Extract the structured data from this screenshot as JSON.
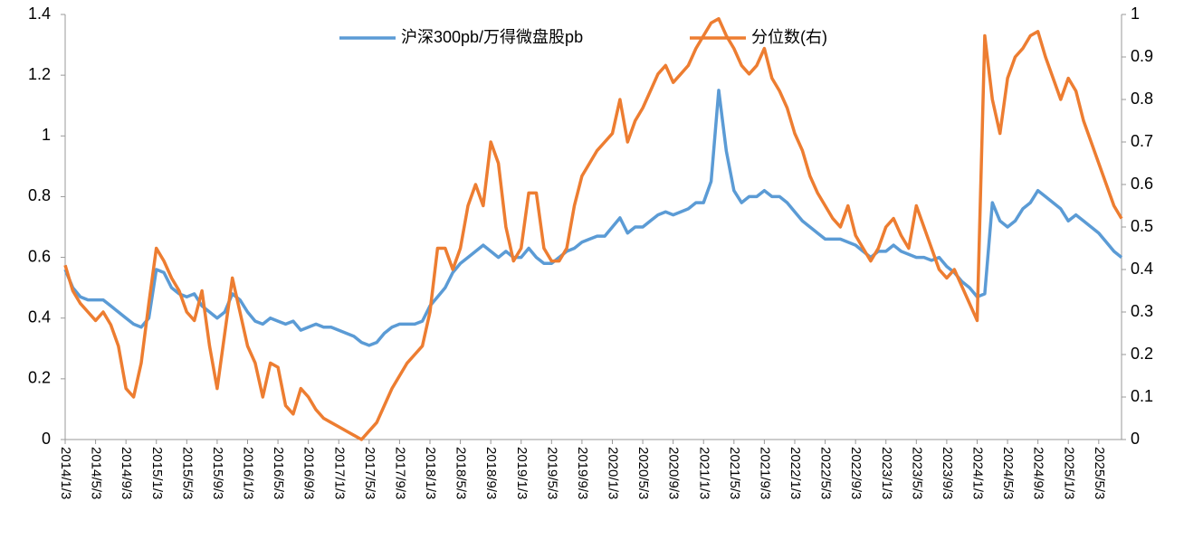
{
  "chart_data": {
    "type": "line",
    "legend": "top",
    "categories": [
      "2014/1/3",
      null,
      null,
      null,
      "2014/5/3",
      null,
      null,
      null,
      "2014/9/3",
      null,
      null,
      null,
      "2015/1/3",
      null,
      null,
      null,
      "2015/5/3",
      null,
      null,
      null,
      "2015/9/3",
      null,
      null,
      null,
      "2016/1/3",
      null,
      null,
      null,
      "2016/5/3",
      null,
      null,
      null,
      "2016/9/3",
      null,
      null,
      null,
      "2017/1/3",
      null,
      null,
      null,
      "2017/5/3",
      null,
      null,
      null,
      "2017/9/3",
      null,
      null,
      null,
      "2018/1/3",
      null,
      null,
      null,
      "2018/5/3",
      null,
      null,
      null,
      "2018/9/3",
      null,
      null,
      null,
      "2019/1/3",
      null,
      null,
      null,
      "2019/5/3",
      null,
      null,
      null,
      "2019/9/3",
      null,
      null,
      null,
      "2020/1/3",
      null,
      null,
      null,
      "2020/5/3",
      null,
      null,
      null,
      "2020/9/3",
      null,
      null,
      null,
      "2021/1/3",
      null,
      null,
      null,
      "2021/5/3",
      null,
      null,
      null,
      "2021/9/3",
      null,
      null,
      null,
      "2022/1/3",
      null,
      null,
      null,
      "2022/5/3",
      null,
      null,
      null,
      "2022/9/3",
      null,
      null,
      null,
      "2023/1/3",
      null,
      null,
      null,
      "2023/5/3",
      null,
      null,
      null,
      "2023/9/3",
      null,
      null,
      null,
      "2024/1/3",
      null,
      null,
      null,
      "2024/5/3",
      null,
      null,
      null,
      "2024/9/3",
      null,
      null,
      null,
      "2025/1/3",
      null,
      null,
      null,
      "2025/5/3",
      null,
      null,
      null
    ],
    "series": [
      {
        "name": "沪深300pb/万得微盘股pb",
        "color": "#5b9bd5",
        "values": [
          0.56,
          0.5,
          0.47,
          0.46,
          0.46,
          0.46,
          0.44,
          0.42,
          0.4,
          0.38,
          0.37,
          0.4,
          0.56,
          0.55,
          0.5,
          0.48,
          0.47,
          0.48,
          0.44,
          0.42,
          0.4,
          0.42,
          0.48,
          0.46,
          0.42,
          0.39,
          0.38,
          0.4,
          0.39,
          0.38,
          0.39,
          0.36,
          0.37,
          0.38,
          0.37,
          0.37,
          0.36,
          0.35,
          0.34,
          0.32,
          0.31,
          0.32,
          0.35,
          0.37,
          0.38,
          0.38,
          0.38,
          0.39,
          0.44,
          0.47,
          0.5,
          0.55,
          0.58,
          0.6,
          0.62,
          0.64,
          0.62,
          0.6,
          0.62,
          0.6,
          0.6,
          0.63,
          0.6,
          0.58,
          0.58,
          0.6,
          0.62,
          0.63,
          0.65,
          0.66,
          0.67,
          0.67,
          0.7,
          0.73,
          0.68,
          0.7,
          0.7,
          0.72,
          0.74,
          0.75,
          0.74,
          0.75,
          0.76,
          0.78,
          0.78,
          0.85,
          1.15,
          0.95,
          0.82,
          0.78,
          0.8,
          0.8,
          0.82,
          0.8,
          0.8,
          0.78,
          0.75,
          0.72,
          0.7,
          0.68,
          0.66,
          0.66,
          0.66,
          0.65,
          0.64,
          0.62,
          0.6,
          0.62,
          0.62,
          0.64,
          0.62,
          0.61,
          0.6,
          0.6,
          0.59,
          0.6,
          0.57,
          0.55,
          0.52,
          0.5,
          0.47,
          0.48,
          0.78,
          0.72,
          0.7,
          0.72,
          0.76,
          0.78,
          0.82,
          0.8,
          0.78,
          0.76,
          0.72,
          0.74,
          0.72,
          0.7,
          0.68,
          0.65,
          0.62,
          0.6
        ]
      },
      {
        "name": "分位数(右)",
        "color": "#ed7d31",
        "axis": "y2",
        "values": [
          0.41,
          0.35,
          0.32,
          0.3,
          0.28,
          0.3,
          0.27,
          0.22,
          0.12,
          0.1,
          0.18,
          0.32,
          0.45,
          0.42,
          0.38,
          0.35,
          0.3,
          0.28,
          0.35,
          0.22,
          0.12,
          0.25,
          0.38,
          0.3,
          0.22,
          0.18,
          0.1,
          0.18,
          0.17,
          0.08,
          0.06,
          0.12,
          0.1,
          0.07,
          0.05,
          0.04,
          0.03,
          0.02,
          0.01,
          0.0,
          0.02,
          0.04,
          0.08,
          0.12,
          0.15,
          0.18,
          0.2,
          0.22,
          0.3,
          0.45,
          0.45,
          0.4,
          0.45,
          0.55,
          0.6,
          0.55,
          0.7,
          0.65,
          0.5,
          0.42,
          0.45,
          0.58,
          0.58,
          0.45,
          0.42,
          0.42,
          0.45,
          0.55,
          0.62,
          0.65,
          0.68,
          0.7,
          0.72,
          0.8,
          0.7,
          0.75,
          0.78,
          0.82,
          0.86,
          0.88,
          0.84,
          0.86,
          0.88,
          0.92,
          0.95,
          0.98,
          0.99,
          0.95,
          0.92,
          0.88,
          0.86,
          0.88,
          0.92,
          0.85,
          0.82,
          0.78,
          0.72,
          0.68,
          0.62,
          0.58,
          0.55,
          0.52,
          0.5,
          0.55,
          0.48,
          0.45,
          0.42,
          0.45,
          0.5,
          0.52,
          0.48,
          0.45,
          0.55,
          0.5,
          0.45,
          0.4,
          0.38,
          0.4,
          0.36,
          0.32,
          0.28,
          0.95,
          0.8,
          0.72,
          0.85,
          0.9,
          0.92,
          0.95,
          0.96,
          0.9,
          0.85,
          0.8,
          0.85,
          0.82,
          0.75,
          0.7,
          0.65,
          0.6,
          0.55,
          0.52
        ]
      }
    ],
    "ylim": [
      0,
      1.4
    ],
    "yticks": [
      0,
      0.2,
      0.4,
      0.6,
      0.8,
      1,
      1.2,
      1.4
    ],
    "y2lim": [
      0,
      1
    ],
    "y2ticks": [
      0,
      0.1,
      0.2,
      0.3,
      0.4,
      0.5,
      0.6,
      0.7,
      0.8,
      0.9,
      1
    ]
  }
}
